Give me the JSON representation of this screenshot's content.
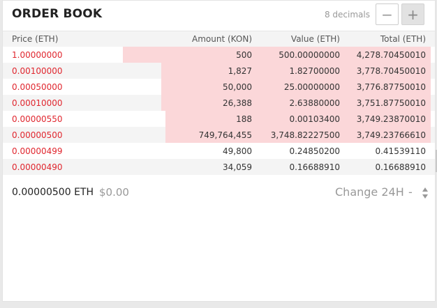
{
  "header": {
    "title": "ORDER BOOK",
    "decimals_label": "8 decimals",
    "minus_label": "−",
    "plus_label": "+"
  },
  "columns": {
    "price": "Price (ETH)",
    "amount": "Amount (KON)",
    "value": "Value (ETH)",
    "total": "Total (ETH)"
  },
  "rows": [
    {
      "price": "1.00000000",
      "amount": "500",
      "value": "500.00000000",
      "total": "4,278.70450010",
      "depth": 0.72
    },
    {
      "price": "0.00100000",
      "amount": "1,827",
      "value": "1.82700000",
      "total": "3,778.70450010",
      "depth": 0.63
    },
    {
      "price": "0.00050000",
      "amount": "50,000",
      "value": "25.00000000",
      "total": "3,776.87750010",
      "depth": 0.63
    },
    {
      "price": "0.00010000",
      "amount": "26,388",
      "value": "2.63880000",
      "total": "3,751.87750010",
      "depth": 0.63
    },
    {
      "price": "0.00000550",
      "amount": "188",
      "value": "0.00103400",
      "total": "3,749.23870010",
      "depth": 0.62
    },
    {
      "price": "0.00000500",
      "amount": "749,764,455",
      "value": "3,748.82227500",
      "total": "3,749.23766610",
      "depth": 0.62
    },
    {
      "price": "0.00000499",
      "amount": "49,800",
      "value": "0.24850200",
      "total": "0.41539110",
      "depth": 0
    },
    {
      "price": "0.00000490",
      "amount": "34,059",
      "value": "0.16688910",
      "total": "0.16688910",
      "depth": 0
    }
  ],
  "footer": {
    "last_price": "0.00000500 ETH",
    "last_price_usd": "$0.00",
    "change_label": "Change 24H",
    "change_value": "-"
  },
  "colors": {
    "sell_price": "#e0262e",
    "depth_fill": "#fbd7d9"
  }
}
